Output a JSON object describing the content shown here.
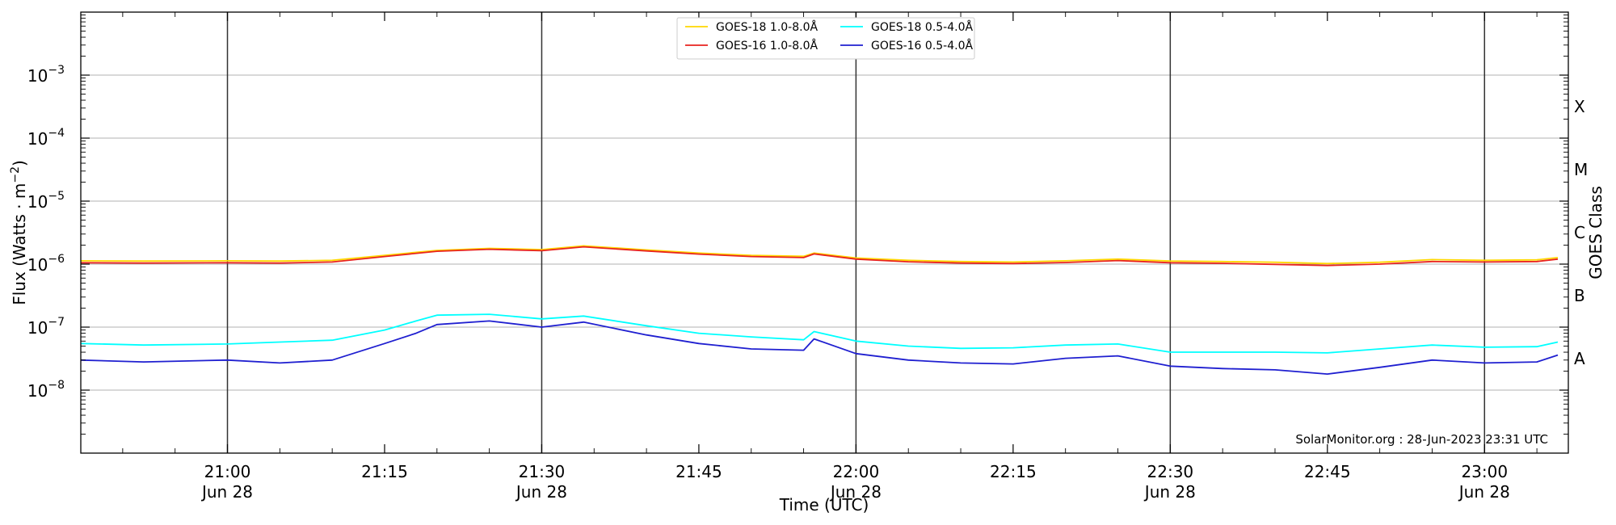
{
  "chart_data": {
    "type": "line",
    "xlabel": "Time (UTC)",
    "ylabel": "Flux (Watts · m",
    "ylabel_superscript": "−2",
    "ylabel_close": ")",
    "right_label": "GOES Class",
    "y_scale": "log",
    "ylim": [
      1e-09,
      0.01
    ],
    "xlim": [
      "2023-06-28T20:46",
      "2023-06-28T23:08"
    ],
    "grid": "horizontal",
    "legend_position": "top-center",
    "y_ticks": [
      {
        "exp": -8,
        "base": "10",
        "sup": "−8"
      },
      {
        "exp": -7,
        "base": "10",
        "sup": "−7"
      },
      {
        "exp": -6,
        "base": "10",
        "sup": "−6"
      },
      {
        "exp": -5,
        "base": "10",
        "sup": "−5"
      },
      {
        "exp": -4,
        "base": "10",
        "sup": "−4"
      },
      {
        "exp": -3,
        "base": "10",
        "sup": "−3"
      }
    ],
    "x_ticks": [
      {
        "time": "21:00",
        "line1": "21:00",
        "line2": "Jun 28",
        "vline": true
      },
      {
        "time": "21:15",
        "line1": "21:15",
        "line2": "",
        "vline": false
      },
      {
        "time": "21:30",
        "line1": "21:30",
        "line2": "Jun 28",
        "vline": true
      },
      {
        "time": "21:45",
        "line1": "21:45",
        "line2": "",
        "vline": false
      },
      {
        "time": "22:00",
        "line1": "22:00",
        "line2": "Jun 28",
        "vline": true
      },
      {
        "time": "22:15",
        "line1": "22:15",
        "line2": "",
        "vline": false
      },
      {
        "time": "22:30",
        "line1": "22:30",
        "line2": "Jun 28",
        "vline": true
      },
      {
        "time": "22:45",
        "line1": "22:45",
        "line2": "",
        "vline": false
      },
      {
        "time": "23:00",
        "line1": "23:00",
        "line2": "Jun 28",
        "vline": true
      }
    ],
    "goes_classes": [
      {
        "label": "A",
        "flux": 1e-08
      },
      {
        "label": "B",
        "flux": 1e-07
      },
      {
        "label": "C",
        "flux": 1e-06
      },
      {
        "label": "M",
        "flux": 1e-05
      },
      {
        "label": "X",
        "flux": 0.0001
      }
    ],
    "series": [
      {
        "name": "GOES-18 1.0-8.0Å",
        "color": "#ffd700",
        "points": [
          [
            "20:46",
            1.13e-06
          ],
          [
            "20:52",
            1.12e-06
          ],
          [
            "21:00",
            1.13e-06
          ],
          [
            "21:05",
            1.12e-06
          ],
          [
            "21:10",
            1.15e-06
          ],
          [
            "21:15",
            1.38e-06
          ],
          [
            "21:20",
            1.65e-06
          ],
          [
            "21:25",
            1.78e-06
          ],
          [
            "21:30",
            1.7e-06
          ],
          [
            "21:34",
            1.95e-06
          ],
          [
            "21:40",
            1.68e-06
          ],
          [
            "21:45",
            1.5e-06
          ],
          [
            "21:50",
            1.38e-06
          ],
          [
            "21:55",
            1.33e-06
          ],
          [
            "21:56",
            1.5e-06
          ],
          [
            "22:00",
            1.25e-06
          ],
          [
            "22:05",
            1.15e-06
          ],
          [
            "22:10",
            1.1e-06
          ],
          [
            "22:15",
            1.08e-06
          ],
          [
            "22:20",
            1.13e-06
          ],
          [
            "22:25",
            1.2e-06
          ],
          [
            "22:30",
            1.12e-06
          ],
          [
            "22:35",
            1.1e-06
          ],
          [
            "22:40",
            1.07e-06
          ],
          [
            "22:45",
            1.02e-06
          ],
          [
            "22:50",
            1.07e-06
          ],
          [
            "22:55",
            1.18e-06
          ],
          [
            "23:00",
            1.15e-06
          ],
          [
            "23:05",
            1.17e-06
          ],
          [
            "23:07",
            1.27e-06
          ]
        ]
      },
      {
        "name": "GOES-16 1.0-8.0Å",
        "color": "#e8231e",
        "points": [
          [
            "20:46",
            1.05e-06
          ],
          [
            "20:52",
            1.04e-06
          ],
          [
            "21:00",
            1.05e-06
          ],
          [
            "21:05",
            1.04e-06
          ],
          [
            "21:10",
            1.08e-06
          ],
          [
            "21:15",
            1.32e-06
          ],
          [
            "21:20",
            1.6e-06
          ],
          [
            "21:25",
            1.72e-06
          ],
          [
            "21:30",
            1.63e-06
          ],
          [
            "21:34",
            1.88e-06
          ],
          [
            "21:40",
            1.62e-06
          ],
          [
            "21:45",
            1.44e-06
          ],
          [
            "21:50",
            1.32e-06
          ],
          [
            "21:55",
            1.27e-06
          ],
          [
            "21:56",
            1.45e-06
          ],
          [
            "22:00",
            1.2e-06
          ],
          [
            "22:05",
            1.09e-06
          ],
          [
            "22:10",
            1.04e-06
          ],
          [
            "22:15",
            1.02e-06
          ],
          [
            "22:20",
            1.06e-06
          ],
          [
            "22:25",
            1.14e-06
          ],
          [
            "22:30",
            1.05e-06
          ],
          [
            "22:35",
            1.03e-06
          ],
          [
            "22:40",
            9.9e-07
          ],
          [
            "22:45",
            9.5e-07
          ],
          [
            "22:50",
            1e-06
          ],
          [
            "22:55",
            1.1e-06
          ],
          [
            "23:00",
            1.08e-06
          ],
          [
            "23:05",
            1.1e-06
          ],
          [
            "23:07",
            1.2e-06
          ]
        ]
      },
      {
        "name": "GOES-18 0.5-4.0Å",
        "color": "#00ffff",
        "points": [
          [
            "20:46",
            5.5e-08
          ],
          [
            "20:52",
            5.2e-08
          ],
          [
            "21:00",
            5.4e-08
          ],
          [
            "21:05",
            5.8e-08
          ],
          [
            "21:10",
            6.2e-08
          ],
          [
            "21:15",
            9e-08
          ],
          [
            "21:18",
            1.25e-07
          ],
          [
            "21:20",
            1.55e-07
          ],
          [
            "21:25",
            1.6e-07
          ],
          [
            "21:30",
            1.35e-07
          ],
          [
            "21:34",
            1.5e-07
          ],
          [
            "21:40",
            1.05e-07
          ],
          [
            "21:45",
            8e-08
          ],
          [
            "21:50",
            7e-08
          ],
          [
            "21:55",
            6.3e-08
          ],
          [
            "21:56",
            8.5e-08
          ],
          [
            "22:00",
            6e-08
          ],
          [
            "22:05",
            5e-08
          ],
          [
            "22:10",
            4.6e-08
          ],
          [
            "22:15",
            4.7e-08
          ],
          [
            "22:20",
            5.2e-08
          ],
          [
            "22:25",
            5.4e-08
          ],
          [
            "22:30",
            4e-08
          ],
          [
            "22:35",
            4e-08
          ],
          [
            "22:40",
            4e-08
          ],
          [
            "22:45",
            3.9e-08
          ],
          [
            "22:50",
            4.5e-08
          ],
          [
            "22:55",
            5.2e-08
          ],
          [
            "23:00",
            4.8e-08
          ],
          [
            "23:05",
            4.9e-08
          ],
          [
            "23:07",
            5.8e-08
          ]
        ]
      },
      {
        "name": "GOES-16 0.5-4.0Å",
        "color": "#1f1fd0",
        "points": [
          [
            "20:46",
            3e-08
          ],
          [
            "20:52",
            2.8e-08
          ],
          [
            "21:00",
            3e-08
          ],
          [
            "21:05",
            2.7e-08
          ],
          [
            "21:10",
            3e-08
          ],
          [
            "21:15",
            5.5e-08
          ],
          [
            "21:18",
            8e-08
          ],
          [
            "21:20",
            1.1e-07
          ],
          [
            "21:25",
            1.25e-07
          ],
          [
            "21:30",
            1e-07
          ],
          [
            "21:34",
            1.2e-07
          ],
          [
            "21:40",
            7.5e-08
          ],
          [
            "21:45",
            5.5e-08
          ],
          [
            "21:50",
            4.5e-08
          ],
          [
            "21:55",
            4.3e-08
          ],
          [
            "21:56",
            6.5e-08
          ],
          [
            "22:00",
            3.8e-08
          ],
          [
            "22:05",
            3e-08
          ],
          [
            "22:10",
            2.7e-08
          ],
          [
            "22:15",
            2.6e-08
          ],
          [
            "22:20",
            3.2e-08
          ],
          [
            "22:25",
            3.5e-08
          ],
          [
            "22:30",
            2.4e-08
          ],
          [
            "22:35",
            2.2e-08
          ],
          [
            "22:40",
            2.1e-08
          ],
          [
            "22:45",
            1.8e-08
          ],
          [
            "22:50",
            2.3e-08
          ],
          [
            "22:55",
            3e-08
          ],
          [
            "23:00",
            2.7e-08
          ],
          [
            "23:05",
            2.8e-08
          ],
          [
            "23:07",
            3.6e-08
          ]
        ]
      }
    ],
    "credit": "SolarMonitor.org : 28-Jun-2023 23:31 UTC"
  }
}
